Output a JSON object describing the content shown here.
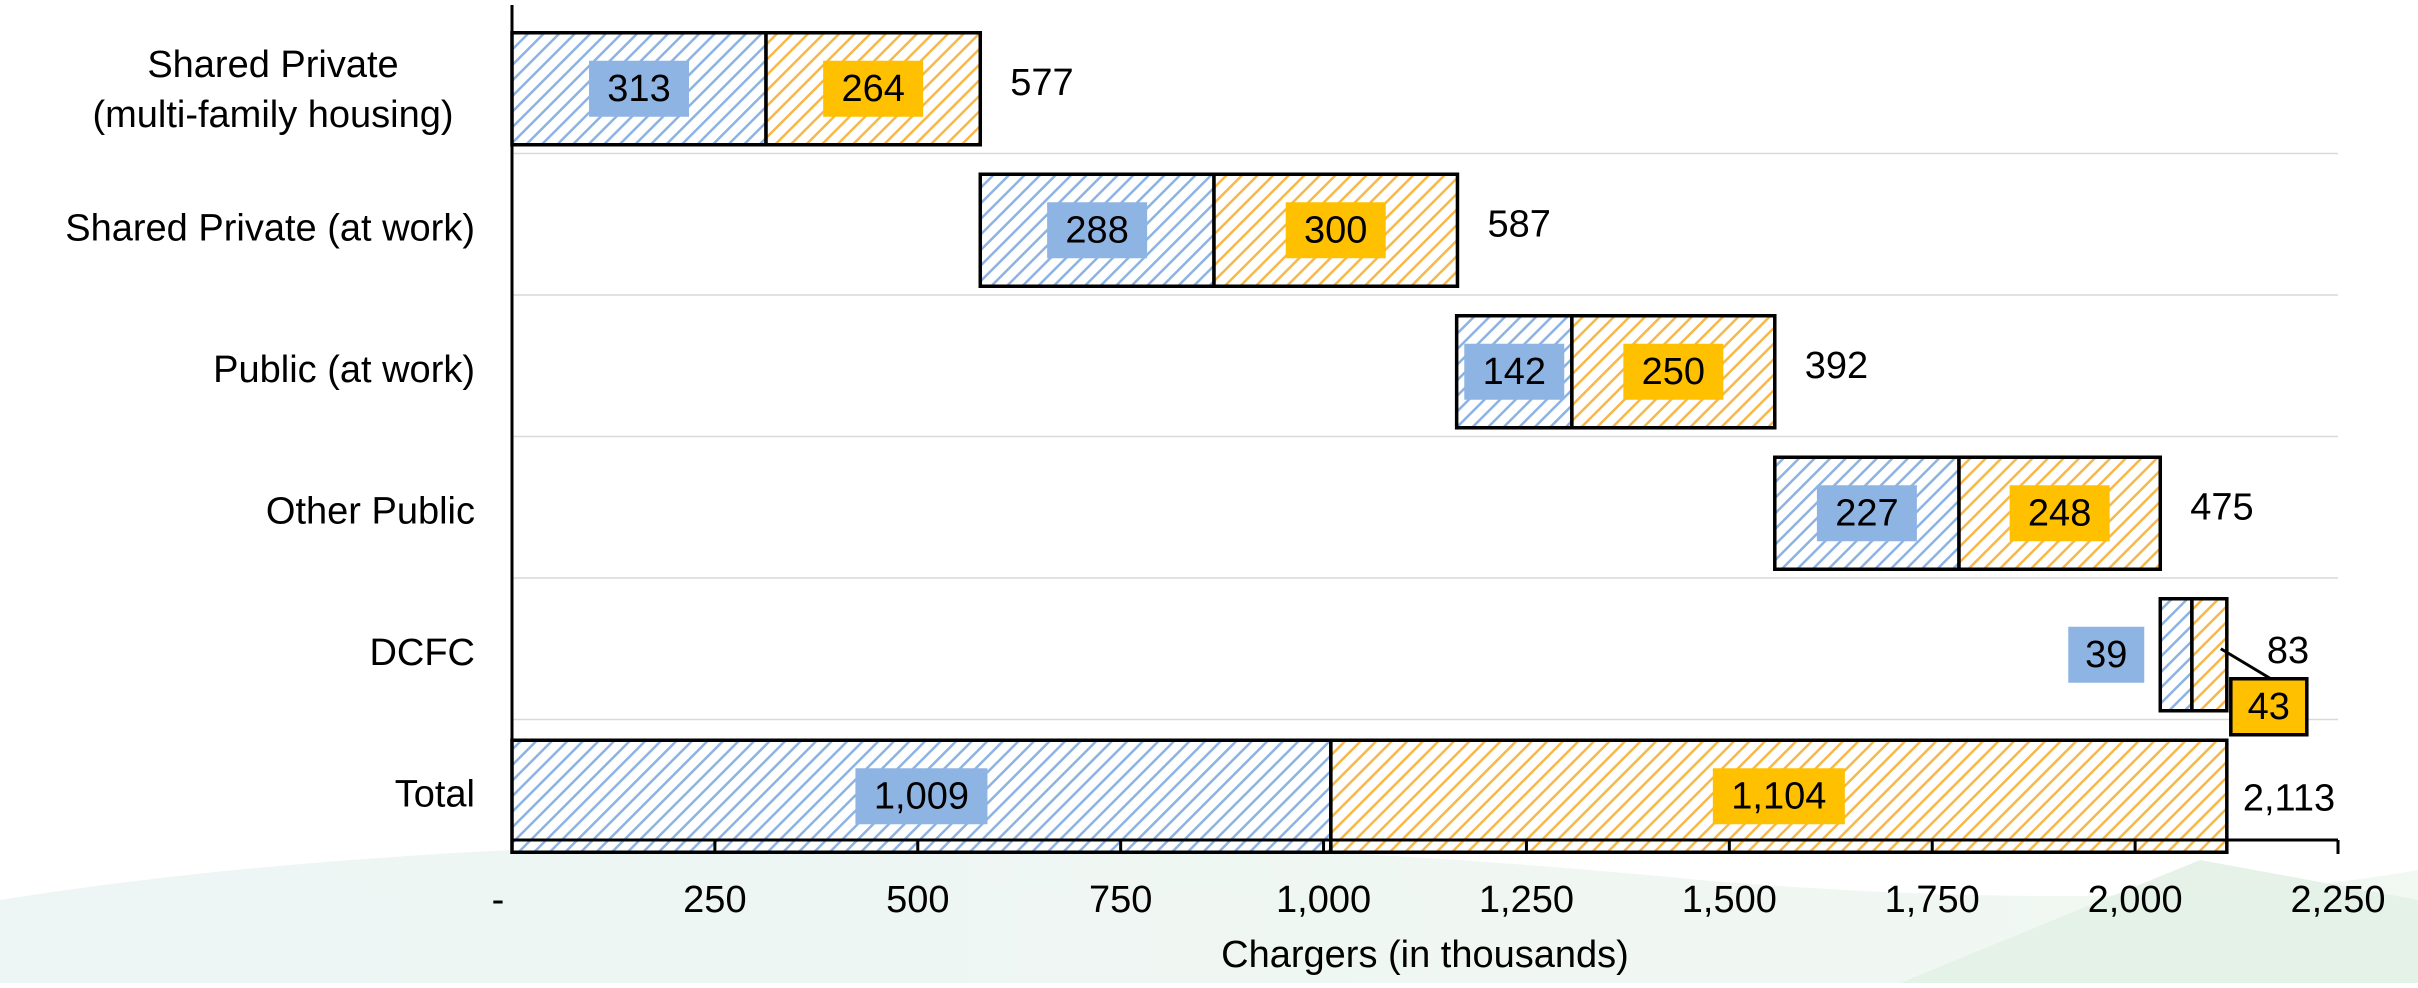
{
  "chart_data": {
    "type": "bar",
    "orientation": "horizontal",
    "stacking": "waterfall",
    "categories": [
      "Shared Private\n(multi-family housing)",
      "Shared Private (at work)",
      "Public (at work)",
      "Other Public",
      "DCFC",
      "Total"
    ],
    "series": [
      {
        "values": [
          313,
          288,
          142,
          227,
          39,
          1009
        ],
        "color": "#8db3e2",
        "pattern": "diagonal-hatch"
      },
      {
        "values": [
          264,
          300,
          250,
          248,
          43,
          1104
        ],
        "color": "#f7b84b",
        "pattern": "diagonal-hatch"
      }
    ],
    "label_colors": [
      "#8eb4e3",
      "#ffc000"
    ],
    "offsets": [
      0,
      577,
      1164,
      1556,
      2031,
      0
    ],
    "totals": [
      577,
      587,
      392,
      475,
      83,
      2113
    ],
    "value_labels": [
      [
        "313",
        "288",
        "142",
        "227",
        "39",
        "1,009"
      ],
      [
        "264",
        "300",
        "250",
        "248",
        "43",
        "1,104"
      ]
    ],
    "total_labels": [
      "577",
      "587",
      "392",
      "475",
      "83",
      "2,113"
    ],
    "xlabel": "Chargers (in thousands)",
    "xlim": [
      0,
      2250
    ],
    "xticks": [
      0,
      250,
      500,
      750,
      1000,
      1250,
      1500,
      1750,
      2000,
      2250
    ],
    "xtick_labels": [
      "-",
      "250",
      "500",
      "750",
      "1,000",
      "1,250",
      "1,500",
      "1,750",
      "2,000",
      "2,250"
    ],
    "grid": "horizontal row separators",
    "legend": "none"
  }
}
